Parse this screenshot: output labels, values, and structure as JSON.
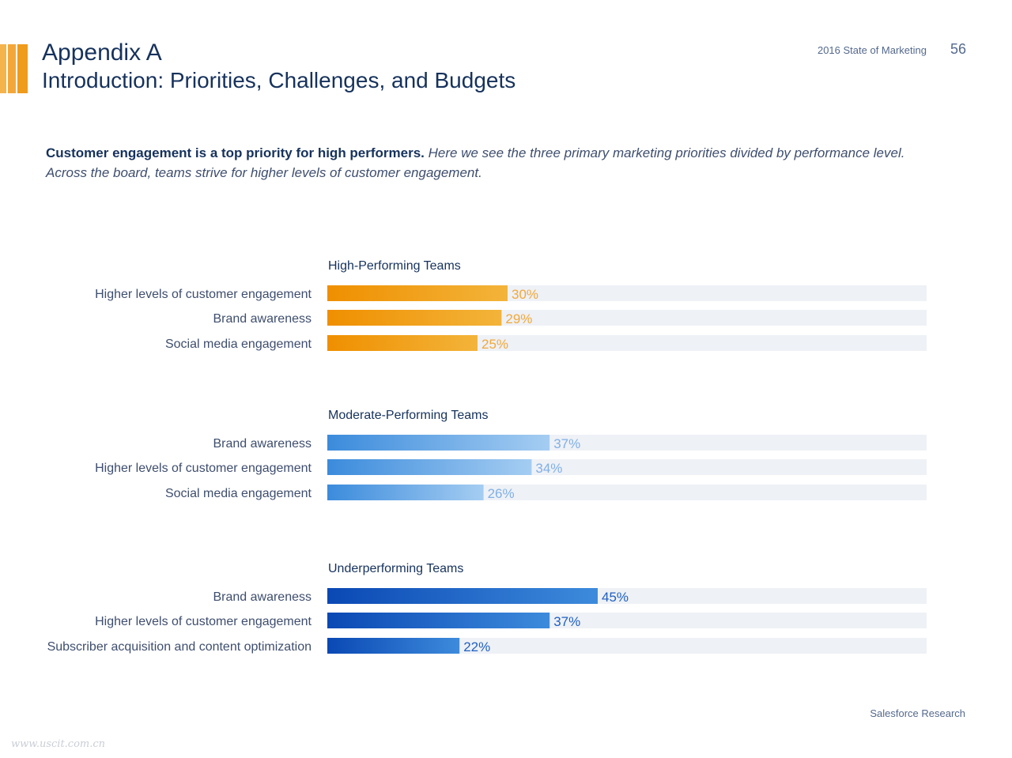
{
  "header": {
    "title": "Appendix A",
    "subtitle": "Introduction: Priorities, Challenges, and Budgets",
    "report": "2016 State of Marketing",
    "page_number": "56"
  },
  "intro": {
    "bold": "Customer engagement is a top priority for high performers.",
    "italic": "Here we see the three primary marketing priorities divided by performance level. Across the board, teams strive for higher levels of customer engagement."
  },
  "chart_data": {
    "type": "bar",
    "orientation": "horizontal",
    "xlim": [
      0,
      100
    ],
    "unit": "%",
    "groups": [
      {
        "title": "High-Performing Teams",
        "color_start": "#ef8f00",
        "color_end": "#f3b43a",
        "label_color": "#f2a83a",
        "categories": [
          "Higher levels of customer engagement",
          "Brand awareness",
          "Social media engagement"
        ],
        "values": [
          30,
          29,
          25
        ]
      },
      {
        "title": "Moderate-Performing Teams",
        "color_start": "#3b8bdc",
        "color_end": "#a5cdf2",
        "label_color": "#7fb0e6",
        "categories": [
          "Brand awareness",
          "Higher levels of customer engagement",
          "Social media engagement"
        ],
        "values": [
          37,
          34,
          26
        ]
      },
      {
        "title": "Underperforming Teams",
        "color_start": "#0a48b4",
        "color_end": "#3d8bdc",
        "label_color": "#1f60c0",
        "categories": [
          "Brand awareness",
          "Higher levels of customer engagement",
          "Subscriber acquisition and content optimization"
        ],
        "values": [
          45,
          37,
          22
        ]
      }
    ]
  },
  "footer": "Salesforce Research",
  "watermark": "www.uscit.com.cn"
}
